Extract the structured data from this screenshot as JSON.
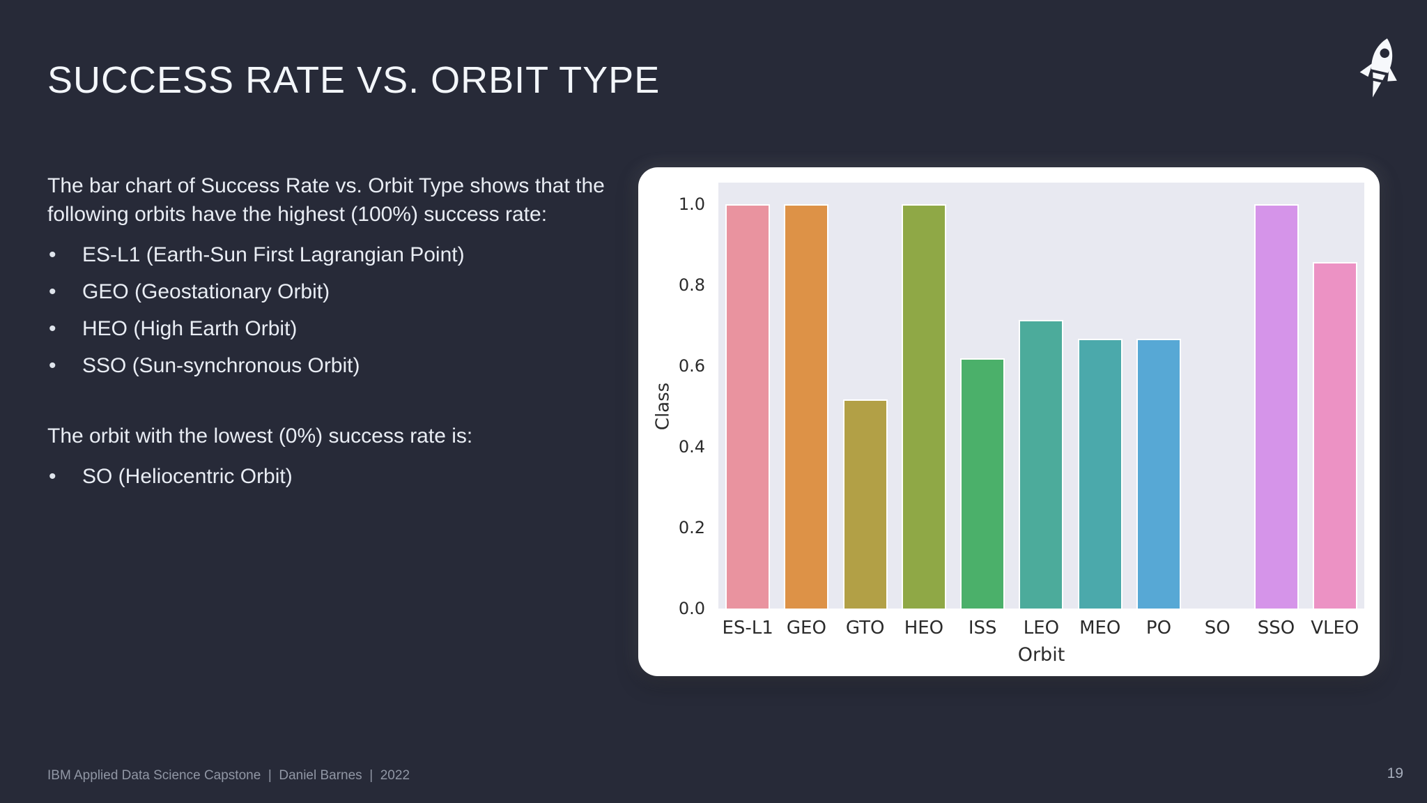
{
  "slide": {
    "title": "SUCCESS RATE VS. ORBIT TYPE",
    "footer": "IBM Applied Data Science Capstone  |  Daniel Barnes  |  2022",
    "page_number": "19",
    "header_icon": "rocket-icon"
  },
  "body": {
    "intro": "The bar chart of Success Rate vs. Orbit Type shows that the following orbits have the highest (100%) success rate:",
    "highest_bullets": [
      "ES-L1 (Earth-Sun First Lagrangian Point)",
      "GEO (Geostationary Orbit)",
      "HEO (High Earth Orbit)",
      "SSO (Sun-synchronous Orbit)"
    ],
    "lowest_intro": "The orbit with the lowest (0%) success rate is:",
    "lowest_bullets": [
      "SO (Heliocentric Orbit)"
    ]
  },
  "chart_data": {
    "type": "bar",
    "title": "",
    "xlabel": "Orbit",
    "ylabel": "Class",
    "categories": [
      "ES-L1",
      "GEO",
      "GTO",
      "HEO",
      "ISS",
      "LEO",
      "MEO",
      "PO",
      "SO",
      "SSO",
      "VLEO"
    ],
    "values": [
      1.0,
      1.0,
      0.518,
      1.0,
      0.619,
      0.714,
      0.667,
      0.667,
      0.0,
      1.0,
      0.857
    ],
    "bar_colors": [
      "#E9939F",
      "#DD9247",
      "#B2A046",
      "#8FA846",
      "#4BB06A",
      "#4CAB9B",
      "#4BA9AB",
      "#57A8D5",
      null,
      "#D594E9",
      "#EC92C4"
    ],
    "yticks": [
      0.0,
      0.2,
      0.4,
      0.6,
      0.8,
      1.0
    ],
    "ylim": [
      0,
      1.05
    ],
    "grid": false,
    "legend": "none",
    "plot_background": "#E8E9F1"
  },
  "colors": {
    "background": "#272A38",
    "card": "#FFFFFF",
    "body_text": "#E9EDF4",
    "muted_text": "#9096A4",
    "tick_text": "#2B2B2B"
  }
}
